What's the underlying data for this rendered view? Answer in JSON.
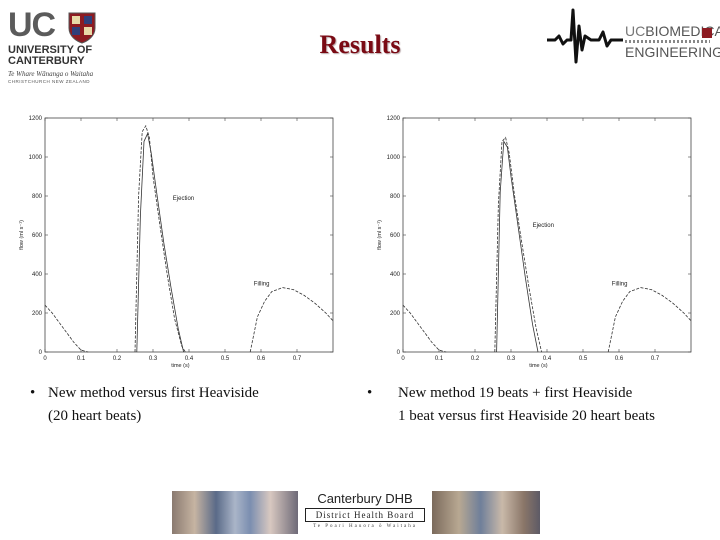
{
  "header": {
    "university": {
      "mark": "UC",
      "name_line1": "UNIVERSITY OF",
      "name_line2": "CANTERBURY",
      "maori_name": "Te Whare Wānanga o Waitaha",
      "location": "CHRISTCHURCH NEW ZEALAND"
    },
    "title": "Results",
    "department": {
      "uc_prefix": "UC",
      "line1": "BIOMEDICAL",
      "line2": "ENGINEERING"
    }
  },
  "chart_data": [
    {
      "type": "line",
      "title": "",
      "xlabel": "time (s)",
      "ylabel": "flow (ml s⁻¹)",
      "xlim": [
        0,
        0.8
      ],
      "ylim": [
        0,
        1200
      ],
      "xticks": [
        "0",
        "0.1",
        "0.2",
        "0.3",
        "0.4",
        "0.5",
        "0.6",
        "0.7"
      ],
      "yticks": [
        "0",
        "200",
        "400",
        "600",
        "800",
        "1000",
        "1200"
      ],
      "annotations": [
        {
          "text": "Ejection",
          "x": 0.355,
          "y": 780
        },
        {
          "text": "Filling",
          "x": 0.58,
          "y": 340
        }
      ],
      "series": [
        {
          "style": "dashed",
          "x": [
            0,
            0.02,
            0.04,
            0.06,
            0.08,
            0.1,
            0.12
          ],
          "y": [
            240,
            200,
            150,
            100,
            50,
            10,
            0
          ]
        },
        {
          "style": "dashed",
          "x": [
            0.25,
            0.26,
            0.27,
            0.28,
            0.29,
            0.3,
            0.32,
            0.34,
            0.36,
            0.38,
            0.39
          ],
          "y": [
            0,
            800,
            1130,
            1160,
            1100,
            900,
            640,
            390,
            170,
            30,
            0
          ]
        },
        {
          "style": "solid",
          "x": [
            0.255,
            0.265,
            0.275,
            0.285,
            0.295,
            0.31,
            0.33,
            0.35,
            0.37,
            0.385
          ],
          "y": [
            0,
            700,
            1080,
            1120,
            1020,
            820,
            560,
            330,
            120,
            0
          ]
        },
        {
          "style": "dashed",
          "x": [
            0.57,
            0.59,
            0.61,
            0.63,
            0.66,
            0.69,
            0.72,
            0.75,
            0.78,
            0.8
          ],
          "y": [
            0,
            180,
            260,
            310,
            330,
            320,
            290,
            250,
            200,
            160
          ]
        }
      ]
    },
    {
      "type": "line",
      "title": "",
      "xlabel": "time (s)",
      "ylabel": "flow (ml s⁻¹)",
      "xlim": [
        0,
        0.8
      ],
      "ylim": [
        0,
        1200
      ],
      "xticks": [
        "0",
        "0.1",
        "0.2",
        "0.3",
        "0.4",
        "0.5",
        "0.6",
        "0.7"
      ],
      "yticks": [
        "0",
        "200",
        "400",
        "600",
        "800",
        "1000",
        "1200"
      ],
      "annotations": [
        {
          "text": "Ejection",
          "x": 0.36,
          "y": 640
        },
        {
          "text": "Filling",
          "x": 0.58,
          "y": 340
        }
      ],
      "series": [
        {
          "style": "dashed",
          "x": [
            0,
            0.02,
            0.04,
            0.06,
            0.08,
            0.1,
            0.12
          ],
          "y": [
            240,
            200,
            150,
            100,
            50,
            10,
            0
          ]
        },
        {
          "style": "dashed",
          "x": [
            0.255,
            0.265,
            0.275,
            0.285,
            0.295,
            0.31,
            0.33,
            0.35,
            0.37,
            0.385
          ],
          "y": [
            0,
            760,
            1080,
            1100,
            1020,
            800,
            560,
            330,
            120,
            0
          ]
        },
        {
          "style": "solid",
          "x": [
            0.26,
            0.27,
            0.28,
            0.29,
            0.3,
            0.32,
            0.34,
            0.36,
            0.375
          ],
          "y": [
            0,
            820,
            1080,
            1050,
            900,
            640,
            380,
            140,
            0
          ]
        },
        {
          "style": "dashed",
          "x": [
            0.57,
            0.59,
            0.61,
            0.63,
            0.66,
            0.69,
            0.72,
            0.75,
            0.78,
            0.8
          ],
          "y": [
            0,
            180,
            260,
            310,
            330,
            320,
            290,
            250,
            200,
            160
          ]
        }
      ]
    }
  ],
  "bullets": [
    {
      "symbol": "•",
      "lines": [
        "New method versus first Heaviside",
        "(20 heart beats)"
      ]
    },
    {
      "symbol": "•",
      "lines": [
        "New method 19 beats + first Heaviside",
        "1 beat versus first Heaviside 20 heart beats"
      ]
    }
  ],
  "footer": {
    "dhb_title": "Canterbury DHB",
    "dhb_bar": "District Health Board",
    "dhb_sub": "Te Poari Hauora ō Waitaha"
  }
}
